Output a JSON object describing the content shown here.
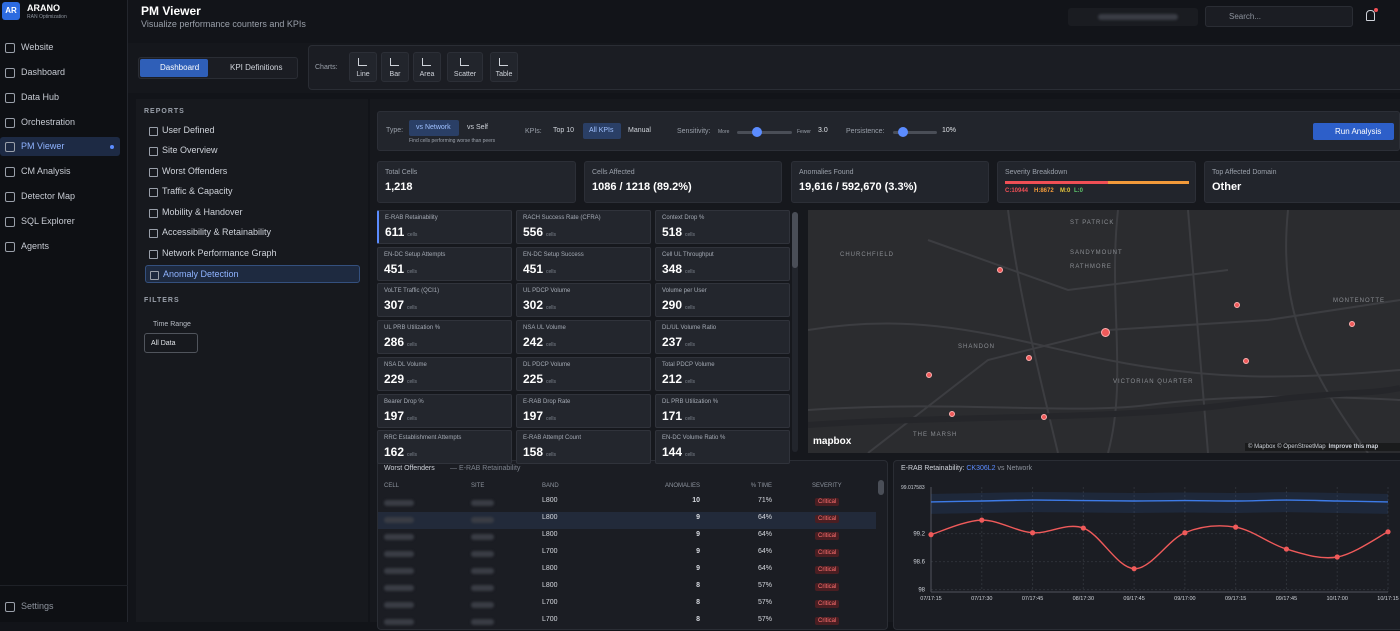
{
  "sidebar": {
    "avatar": "AR",
    "brand": "ARANO",
    "brand_sub": "RAN Optimization",
    "items": [
      "Website",
      "Dashboard",
      "Data Hub",
      "Orchestration",
      "PM Viewer",
      "CM Analysis",
      "Detector Map",
      "SQL Explorer",
      "Agents"
    ],
    "active": "PM Viewer",
    "settings": "Settings"
  },
  "header": {
    "title": "PM Viewer",
    "subtitle": "Visualize performance counters and KPIs",
    "search_placeholder": "Search..."
  },
  "tabs": [
    "Dashboard",
    "KPI Definitions"
  ],
  "charts_label": "Charts:",
  "chart_buttons": [
    "Line",
    "Bar",
    "Area",
    "Scatter",
    "Table"
  ],
  "reports": {
    "heading": "REPORTS",
    "items": [
      "User Defined",
      "Site Overview",
      "Worst Offenders",
      "Traffic & Capacity",
      "Mobility & Handover",
      "Accessibility & Retainability",
      "Network Performance Graph",
      "Anomaly Detection"
    ],
    "active": "Anomaly Detection"
  },
  "filters": {
    "heading": "FILTERS",
    "time_range_label": "Time Range",
    "time_range_value": "All Data"
  },
  "controls": {
    "type_label": "Type:",
    "type_options": [
      "vs Network",
      "vs Self"
    ],
    "type_hint": "Find cells performing worse than peers",
    "kpis_label": "KPIs:",
    "kpi_options": [
      "Top 10",
      "All KPIs",
      "Manual"
    ],
    "sensitivity_label": "Sensitivity:",
    "sensitivity_min": "More",
    "sensitivity_max": "Fewer",
    "sensitivity_value": "3.0",
    "persistence_label": "Persistence:",
    "persistence_value": "10%",
    "run_button": "Run Analysis"
  },
  "stats": [
    {
      "label": "Total Cells",
      "value": "1,218"
    },
    {
      "label": "Cells Affected",
      "value": "1086 / 1218 (89.2%)"
    },
    {
      "label": "Anomalies Found",
      "value": "19,616 / 592,670 (3.3%)"
    },
    {
      "label": "Top Affected Domain",
      "value": "Other"
    }
  ],
  "severity": {
    "label": "Severity Breakdown",
    "values": [
      10944,
      8672,
      0,
      0
    ],
    "value_labels": [
      "C:10944",
      "H:8672",
      "M:0",
      "L:0"
    ],
    "colors": [
      "#ef4f55",
      "#f29a3a",
      "#e3c53c",
      "#5cc46a"
    ]
  },
  "kpi_unit": "cells",
  "kpi_cards": [
    {
      "name": "E-RAB Retainability",
      "count": 611
    },
    {
      "name": "RACH Success Rate (CFRA)",
      "count": 556
    },
    {
      "name": "Context Drop %",
      "count": 518
    },
    {
      "name": "EN-DC Setup Attempts",
      "count": 451
    },
    {
      "name": "EN-DC Setup Success",
      "count": 451
    },
    {
      "name": "Cell UL Throughput",
      "count": 348
    },
    {
      "name": "VoLTE Traffic (QCI1)",
      "count": 307
    },
    {
      "name": "UL PDCP Volume",
      "count": 302
    },
    {
      "name": "Volume per User",
      "count": 290
    },
    {
      "name": "UL PRB Utilization %",
      "count": 286
    },
    {
      "name": "NSA UL Volume",
      "count": 242
    },
    {
      "name": "DL/UL Volume Ratio",
      "count": 237
    },
    {
      "name": "NSA DL Volume",
      "count": 229
    },
    {
      "name": "DL PDCP Volume",
      "count": 225
    },
    {
      "name": "Total PDCP Volume",
      "count": 212
    },
    {
      "name": "Bearer Drop %",
      "count": 197
    },
    {
      "name": "E-RAB Drop Rate",
      "count": 197
    },
    {
      "name": "DL PRB Utilization %",
      "count": 171
    },
    {
      "name": "RRC Establishment Attempts",
      "count": 162
    },
    {
      "name": "E-RAB Attempt Count",
      "count": 158
    },
    {
      "name": "EN-DC Volume Ratio %",
      "count": 144
    }
  ],
  "map": {
    "places": [
      "CHURCHFIELD",
      "SANDYMOUNT",
      "RATHMORE",
      "SHANDON",
      "VICTORIAN QUARTER",
      "MONTENOTTE",
      "THE MARSH",
      "ST PATRICK"
    ],
    "logo": "mapbox",
    "attribution": "© Mapbox © OpenStreetMap",
    "improve": "Improve this map"
  },
  "worst_offenders": {
    "title": "Worst Offenders",
    "subtitle": "— E-RAB Retainability",
    "columns": [
      "CELL",
      "SITE",
      "BAND",
      "ANOMALIES",
      "% TIME",
      "SEVERITY"
    ],
    "rows": [
      [
        "L800",
        10,
        "71%",
        "Critical"
      ],
      [
        "L800",
        9,
        "64%",
        "Critical"
      ],
      [
        "L800",
        9,
        "64%",
        "Critical"
      ],
      [
        "L700",
        9,
        "64%",
        "Critical"
      ],
      [
        "L800",
        9,
        "64%",
        "Critical"
      ],
      [
        "L800",
        8,
        "57%",
        "Critical"
      ],
      [
        "L700",
        8,
        "57%",
        "Critical"
      ],
      [
        "L700",
        8,
        "57%",
        "Critical"
      ]
    ]
  },
  "chart_data": {
    "type": "line",
    "title": "E-RAB Retainability:",
    "title_cell": "CK306L2",
    "title_suffix": "vs Network",
    "top_label": "99.017583",
    "categories": [
      "07/17:15",
      "07/17:30",
      "07/17:45",
      "08/17:30",
      "09/17:45",
      "09/17:00",
      "09/17:15",
      "09/17:45",
      "10/17:00",
      "10/17:15"
    ],
    "series": [
      {
        "name": "Network",
        "color": "#3d7be8",
        "values": [
          99.88,
          99.9,
          99.92,
          99.91,
          99.9,
          99.91,
          99.9,
          99.92,
          99.9,
          99.88
        ]
      },
      {
        "name": "CK306L2",
        "color": "#ef5a5a",
        "values": [
          99.18,
          99.49,
          99.22,
          99.32,
          98.45,
          99.22,
          99.34,
          98.87,
          98.7,
          99.24
        ]
      }
    ],
    "ylim": [
      97.95,
      100.2
    ],
    "yticks": [
      {
        "value": 98,
        "label": "98"
      },
      {
        "value": 98.6,
        "label": "98.6"
      },
      {
        "value": 99.2,
        "label": "99.2"
      }
    ],
    "grid": true
  }
}
